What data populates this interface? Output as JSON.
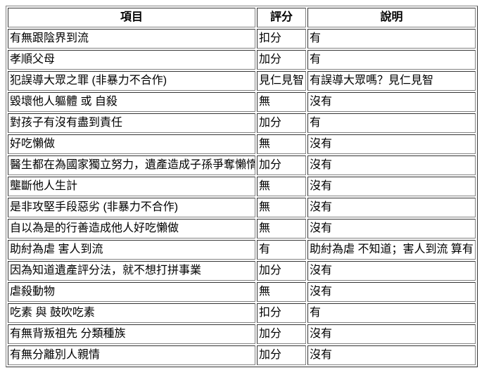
{
  "colors": {
    "background": "#ffffff",
    "text": "#000000",
    "border_light": "#828282",
    "border_dark": "#343434"
  },
  "table": {
    "headers": {
      "item": "項目",
      "score": "評分",
      "note": "說明"
    },
    "rows": [
      {
        "item": "有無跟陰界到流",
        "score": "扣分",
        "note": "有"
      },
      {
        "item": "孝順父母",
        "score": "加分",
        "note": "有"
      },
      {
        "item": "犯誤導大眾之罪 (非暴力不合作)",
        "score": "見仁見智",
        "note": "有誤導大眾嗎？見仁見智"
      },
      {
        "item": "毀壞他人軀體 或 自殺",
        "score": "無",
        "note": "沒有"
      },
      {
        "item": "對孩子有沒有盡到責任",
        "score": "加分",
        "note": "有"
      },
      {
        "item": "好吃懶做",
        "score": "無",
        "note": "沒有"
      },
      {
        "item": "醫生都在為國家獨立努力，遺產造成子孫爭奪懶惰",
        "score": "加分",
        "note": "沒有"
      },
      {
        "item": "壟斷他人生計",
        "score": "無",
        "note": "沒有"
      },
      {
        "item": "是非攻堅手段惡劣 (非暴力不合作)",
        "score": "無",
        "note": "沒有"
      },
      {
        "item": "自以為是的行善造成他人好吃懶做",
        "score": "無",
        "note": "沒有"
      },
      {
        "item": "助紂為虐 害人到流",
        "score": "有",
        "note": "助紂為虐 不知道；害人到流 算有"
      },
      {
        "item": "因為知道遺產評分法，就不想打拼事業",
        "score": "加分",
        "note": "沒有"
      },
      {
        "item": "虐殺動物",
        "score": "無",
        "note": "沒有"
      },
      {
        "item": "吃素 與 鼓吹吃素",
        "score": "扣分",
        "note": "有"
      },
      {
        "item": "有無背叛祖先 分類種族",
        "score": "加分",
        "note": "沒有"
      },
      {
        "item": "有無分離別人親情",
        "score": "加分",
        "note": "沒有"
      }
    ]
  }
}
